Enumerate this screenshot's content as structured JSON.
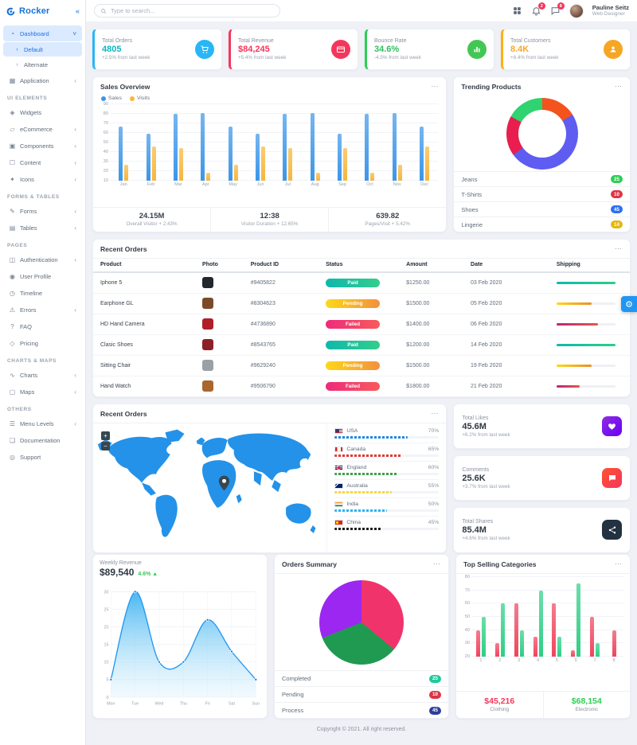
{
  "brand": {
    "name": "Rocker"
  },
  "header": {
    "search_placeholder": "Type to search...",
    "notification_count": "2",
    "message_count": "8",
    "user_name": "Pauline Seitz",
    "user_role": "Web Designer"
  },
  "sidebar": {
    "items": [
      {
        "type": "item",
        "label": "Dashboard",
        "icon": "dashboard-icon",
        "chevron": "expanded",
        "active": true
      },
      {
        "type": "subitem",
        "label": "Default",
        "active": true
      },
      {
        "type": "subitem",
        "label": "Alternate",
        "active": false
      },
      {
        "type": "item",
        "label": "Application",
        "icon": "application-icon",
        "chevron": "collapsed"
      },
      {
        "type": "section",
        "label": "UI ELEMENTS"
      },
      {
        "type": "item",
        "label": "Widgets",
        "icon": "widgets-icon"
      },
      {
        "type": "item",
        "label": "eCommerce",
        "icon": "ecommerce-icon",
        "chevron": "collapsed"
      },
      {
        "type": "item",
        "label": "Components",
        "icon": "components-icon",
        "chevron": "collapsed"
      },
      {
        "type": "item",
        "label": "Content",
        "icon": "content-icon",
        "chevron": "collapsed"
      },
      {
        "type": "item",
        "label": "Icons",
        "icon": "icons-icon",
        "chevron": "collapsed"
      },
      {
        "type": "section",
        "label": "FORMS & TABLES"
      },
      {
        "type": "item",
        "label": "Forms",
        "icon": "forms-icon",
        "chevron": "collapsed"
      },
      {
        "type": "item",
        "label": "Tables",
        "icon": "tables-icon",
        "chevron": "collapsed"
      },
      {
        "type": "section",
        "label": "PAGES"
      },
      {
        "type": "item",
        "label": "Authentication",
        "icon": "authentication-icon",
        "chevron": "collapsed"
      },
      {
        "type": "item",
        "label": "User Profile",
        "icon": "user-profile-icon"
      },
      {
        "type": "item",
        "label": "Timeline",
        "icon": "timeline-icon"
      },
      {
        "type": "item",
        "label": "Errors",
        "icon": "errors-icon",
        "chevron": "collapsed"
      },
      {
        "type": "item",
        "label": "FAQ",
        "icon": "faq-icon"
      },
      {
        "type": "item",
        "label": "Pricing",
        "icon": "pricing-icon"
      },
      {
        "type": "section",
        "label": "CHARTS & MAPS"
      },
      {
        "type": "item",
        "label": "Charts",
        "icon": "charts-icon",
        "chevron": "collapsed"
      },
      {
        "type": "item",
        "label": "Maps",
        "icon": "maps-icon",
        "chevron": "collapsed"
      },
      {
        "type": "section",
        "label": "OTHERS"
      },
      {
        "type": "item",
        "label": "Menu Levels",
        "icon": "menu-levels-icon",
        "chevron": "collapsed"
      },
      {
        "type": "item",
        "label": "Documentation",
        "icon": "documentation-icon"
      },
      {
        "type": "item",
        "label": "Support",
        "icon": "support-icon"
      }
    ]
  },
  "stat_cards": [
    {
      "title": "Total Orders",
      "value": "4805",
      "delta": "+2.5% from last week",
      "accent": "#29b6f6",
      "value_color": "#0bb7c4",
      "icon": "cart-icon",
      "icon_bg": "#29b6f6"
    },
    {
      "title": "Total Revenue",
      "value": "$84,245",
      "delta": "+5.4% from last week",
      "accent": "#f5365c",
      "value_color": "#f5365c",
      "icon": "wallet-icon",
      "icon_bg": "#f5365c"
    },
    {
      "title": "Bounce Rate",
      "value": "34.6%",
      "delta": "-4.5% from last week",
      "accent": "#2dce54",
      "value_color": "#2dbe60",
      "icon": "bar-chart-icon",
      "icon_bg": "#43c754"
    },
    {
      "title": "Total Customers",
      "value": "8.4K",
      "delta": "+8.4% from last week",
      "accent": "#ffb113",
      "value_color": "#f9a825",
      "icon": "customers-icon",
      "icon_bg": "#f5a623"
    }
  ],
  "sales_overview": {
    "title": "Sales Overview",
    "footer_stats": [
      {
        "value": "24.15M",
        "label": "Overall Visitor",
        "delta": "+ 2.43%"
      },
      {
        "value": "12:38",
        "label": "Visitor Duration",
        "delta": "+ 12.65%"
      },
      {
        "value": "639.82",
        "label": "Pages/Visit",
        "delta": "+ 5.42%"
      }
    ]
  },
  "trending_products": {
    "title": "Trending Products",
    "items": [
      {
        "label": "Jeans",
        "count": "25",
        "badge_color": "#2dce54"
      },
      {
        "label": "T-Shirts",
        "count": "10",
        "badge_color": "#dc3545"
      },
      {
        "label": "Shoes",
        "count": "45",
        "badge_color": "#2d6ff0"
      },
      {
        "label": "Lingerie",
        "count": "14",
        "badge_color": "#e4b714"
      }
    ]
  },
  "recent_orders": {
    "title": "Recent Orders",
    "columns": [
      "Product",
      "Photo",
      "Product ID",
      "Status",
      "Amount",
      "Date",
      "Shipping"
    ],
    "rows": [
      {
        "product": "Iphone 5",
        "id": "#9405822",
        "status": "Paid",
        "status_type": "paid",
        "amount": "$1250.00",
        "date": "03 Feb 2020",
        "shipping_pct": 100,
        "photo_color": "#23272e"
      },
      {
        "product": "Earphone GL",
        "id": "#8304623",
        "status": "Pending",
        "status_type": "pending",
        "amount": "$1500.00",
        "date": "05 Feb 2020",
        "shipping_pct": 60,
        "photo_color": "#7a4b2a"
      },
      {
        "product": "HD Hand Camera",
        "id": "#4736890",
        "status": "Failed",
        "status_type": "failed",
        "amount": "$1400.00",
        "date": "06 Feb 2020",
        "shipping_pct": 70,
        "photo_color": "#b01e28"
      },
      {
        "product": "Clasic Shoes",
        "id": "#8543765",
        "status": "Paid",
        "status_type": "paid",
        "amount": "$1200.00",
        "date": "14 Feb 2020",
        "shipping_pct": 100,
        "photo_color": "#8c1f28"
      },
      {
        "product": "Sitting Chair",
        "id": "#9629240",
        "status": "Pending",
        "status_type": "pending",
        "amount": "$1500.00",
        "date": "19 Feb 2020",
        "shipping_pct": 60,
        "photo_color": "#9aa0a6"
      },
      {
        "product": "Hand Watch",
        "id": "#9506790",
        "status": "Failed",
        "status_type": "failed",
        "amount": "$1800.00",
        "date": "21 Feb 2020",
        "shipping_pct": 40,
        "photo_color": "#a9662f"
      }
    ]
  },
  "map_card": {
    "title": "Recent Orders",
    "countries": [
      {
        "name": "USA",
        "pct": 70,
        "pct_label": "70%",
        "bar_color": "#1e88e5",
        "flag": "usa"
      },
      {
        "name": "Canada",
        "pct": 65,
        "pct_label": "65%",
        "bar_color": "#e53935",
        "flag": "canada"
      },
      {
        "name": "England",
        "pct": 60,
        "pct_label": "60%",
        "bar_color": "#43a047",
        "flag": "england"
      },
      {
        "name": "Australia",
        "pct": 55,
        "pct_label": "55%",
        "bar_color": "#fdd835",
        "flag": "australia"
      },
      {
        "name": "India",
        "pct": 50,
        "pct_label": "50%",
        "bar_color": "#29b6f6",
        "flag": "india"
      },
      {
        "name": "China",
        "pct": 45,
        "pct_label": "45%",
        "bar_color": "#212121",
        "flag": "china"
      }
    ]
  },
  "social_cards": [
    {
      "title": "Total Likes",
      "value": "45.6M",
      "delta": "+6.2% from last week",
      "icon": "heart-icon",
      "icon_bg": "linear-gradient(135deg,#8e2de2,#6a00f4)"
    },
    {
      "title": "Comments",
      "value": "25.6K",
      "delta": "+3.7% from last week",
      "icon": "comment-icon",
      "icon_bg": "linear-gradient(135deg,#ff512f,#f5365c)"
    },
    {
      "title": "Total Shares",
      "value": "85.4M",
      "delta": "+4.6% from last week",
      "icon": "share-icon",
      "icon_bg": "#233140"
    }
  ],
  "weekly_revenue": {
    "title": "Weekly Revenue",
    "value": "$89,540",
    "delta": "4.6% ▲"
  },
  "orders_summary": {
    "title": "Orders Summary",
    "legend": [
      {
        "label": "Completed",
        "count": "25",
        "badge_color": "#20c997"
      },
      {
        "label": "Pending",
        "count": "10",
        "badge_color": "#dc3545"
      },
      {
        "label": "Process",
        "count": "45",
        "badge_color": "#2c3e9e"
      }
    ]
  },
  "top_selling": {
    "title": "Top Selling Categories",
    "footer": [
      {
        "value": "$45,216",
        "label": "Clothing",
        "color": "#f5365c"
      },
      {
        "value": "$68,154",
        "label": "Electronic",
        "color": "#2dce54"
      }
    ]
  },
  "page_footer": "Copyright © 2021. All right reserved.",
  "chart_data": [
    {
      "id": "sales-overview",
      "type": "bar",
      "title": "Sales Overview",
      "categories": [
        "Jan",
        "Feb",
        "Mar",
        "Apr",
        "May",
        "Jun",
        "Jul",
        "Aug",
        "Sep",
        "Oct",
        "Nov",
        "Dec"
      ],
      "series": [
        {
          "name": "Sales",
          "color": "#3b96e9",
          "values": [
            67,
            59,
            80,
            81,
            67,
            59,
            80,
            81,
            59,
            80,
            81,
            67
          ]
        },
        {
          "name": "Visits",
          "color": "#f7b63c",
          "values": [
            27,
            46,
            44,
            18,
            27,
            46,
            44,
            18,
            44,
            18,
            27,
            46
          ]
        }
      ],
      "ylim": [
        10,
        90
      ],
      "yticks": [
        10,
        20,
        30,
        40,
        50,
        60,
        70,
        80,
        90
      ],
      "grid": true,
      "legend_position": "top-left"
    },
    {
      "id": "trending-donut",
      "type": "pie",
      "variant": "donut",
      "title": "Trending Products",
      "slices": [
        {
          "label": "Lingerie",
          "value": 16,
          "color": "#f4531d"
        },
        {
          "label": "Shoes",
          "value": 49,
          "color": "#5f5cf1"
        },
        {
          "label": "T-Shirts",
          "value": 18,
          "color": "#e91e4f"
        },
        {
          "label": "Jeans",
          "value": 17,
          "color": "#2fd36f"
        }
      ]
    },
    {
      "id": "weekly-revenue",
      "type": "area",
      "title": "Weekly Revenue",
      "x": [
        "Mon",
        "Tue",
        "Wed",
        "Thu",
        "Fri",
        "Sat",
        "Sun"
      ],
      "values": [
        5,
        30,
        10,
        10,
        22,
        13,
        5
      ],
      "ylim": [
        0,
        30
      ],
      "yticks": [
        0,
        5,
        10,
        15,
        20,
        25,
        30
      ],
      "color": "#2196f3",
      "grid": true
    },
    {
      "id": "orders-summary",
      "type": "pie",
      "title": "Orders Summary",
      "slices": [
        {
          "label": "Pending",
          "value": 36,
          "color": "#f1336b"
        },
        {
          "label": "Completed",
          "value": 33,
          "color": "#219a51"
        },
        {
          "label": "Process",
          "value": 31,
          "color": "#9c27f0"
        }
      ]
    },
    {
      "id": "top-selling",
      "type": "bar",
      "title": "Top Selling Categories",
      "categories": [
        "1",
        "2",
        "3",
        "4",
        "5",
        "6",
        "7",
        "8"
      ],
      "series": [
        {
          "name": "Clothing",
          "color": "#f0455e",
          "values": [
            40,
            30,
            60,
            35,
            60,
            25,
            50,
            40
          ]
        },
        {
          "name": "Electronic",
          "color": "#2ecf85",
          "values": [
            50,
            60,
            40,
            70,
            35,
            75,
            30,
            null
          ]
        }
      ],
      "ylim": [
        20,
        80
      ],
      "yticks": [
        20,
        30,
        40,
        50,
        60,
        70,
        80
      ],
      "grid": true
    }
  ]
}
